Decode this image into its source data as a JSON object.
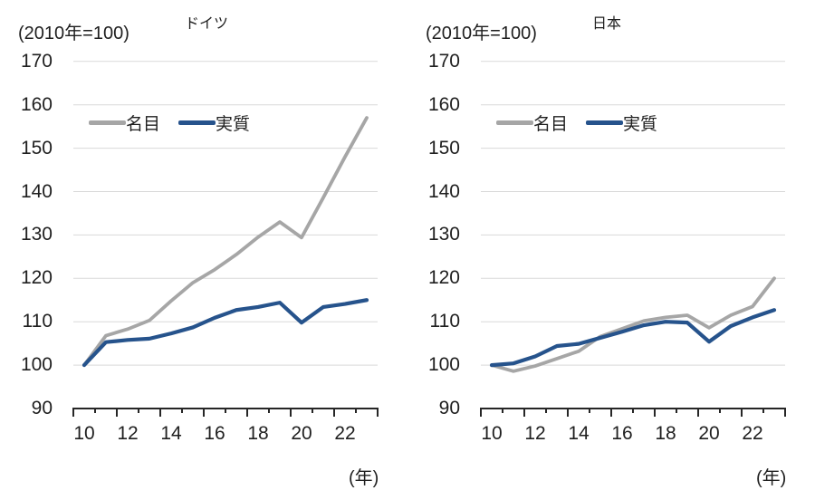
{
  "colors": {
    "nominal_line": "#a6a6a6",
    "real_line": "#26538c",
    "gridline": "#d9d9d9",
    "axis": "#262626",
    "text": "#1f1f1f"
  },
  "chart_data": [
    {
      "type": "line",
      "title": "ドイツ",
      "subtitle": "(2010年=100)",
      "xlabel": "(年)",
      "x": [
        10,
        11,
        12,
        13,
        14,
        15,
        16,
        17,
        18,
        19,
        20,
        21,
        22,
        23
      ],
      "x_tick_labels": [
        "10",
        "12",
        "14",
        "16",
        "18",
        "20",
        "22"
      ],
      "ylim": [
        90,
        170
      ],
      "y_ticks": [
        90,
        100,
        110,
        120,
        130,
        140,
        150,
        160,
        170
      ],
      "grid": true,
      "legend_position": "inside-top-left",
      "series": [
        {
          "name": "名目",
          "color": "#a6a6a6",
          "values": [
            100,
            106.8,
            108.3,
            110.3,
            114.8,
            119,
            122,
            125.5,
            129.5,
            133,
            129.4,
            138.6,
            148,
            157
          ]
        },
        {
          "name": "実質",
          "color": "#26538c",
          "values": [
            100,
            105.3,
            105.8,
            106.1,
            107.3,
            108.7,
            110.9,
            112.7,
            113.4,
            114.4,
            109.8,
            113.4,
            114.1,
            115
          ]
        }
      ]
    },
    {
      "type": "line",
      "title": "日本",
      "subtitle": "(2010年=100)",
      "xlabel": "(年)",
      "x": [
        10,
        11,
        12,
        13,
        14,
        15,
        16,
        17,
        18,
        19,
        20,
        21,
        22,
        23
      ],
      "x_tick_labels": [
        "10",
        "12",
        "14",
        "16",
        "18",
        "20",
        "22"
      ],
      "ylim": [
        90,
        170
      ],
      "y_ticks": [
        90,
        100,
        110,
        120,
        130,
        140,
        150,
        160,
        170
      ],
      "grid": true,
      "legend_position": "inside-top-left",
      "series": [
        {
          "name": "名目",
          "color": "#a6a6a6",
          "values": [
            100,
            98.6,
            99.8,
            101.5,
            103.2,
            106.6,
            108.4,
            110.2,
            111,
            111.5,
            108.6,
            111.5,
            113.5,
            120
          ]
        },
        {
          "name": "実質",
          "color": "#26538c",
          "values": [
            100,
            100.4,
            102,
            104.4,
            104.9,
            106.3,
            107.7,
            109.2,
            110,
            109.8,
            105.4,
            109,
            111,
            112.7
          ]
        }
      ]
    }
  ]
}
